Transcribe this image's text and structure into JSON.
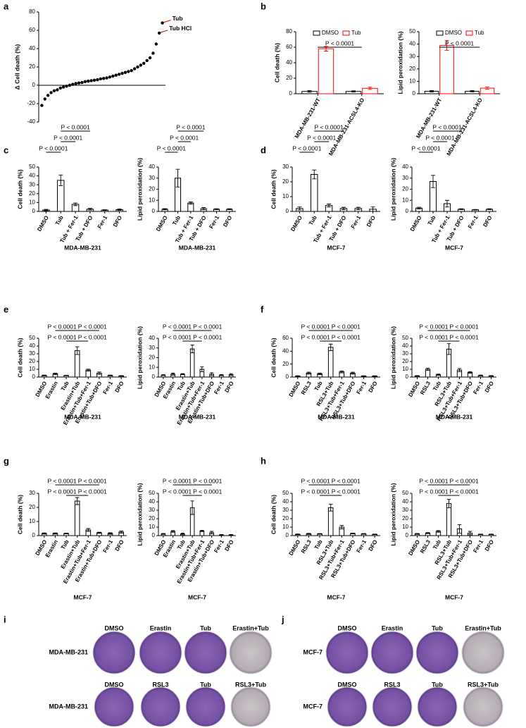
{
  "chart_data": [
    {
      "type": "scatter",
      "label": "a",
      "ylabel": "Δ Cell death (%)",
      "x": [
        1,
        2,
        3,
        4,
        5,
        6,
        7,
        8,
        9,
        10,
        11,
        12,
        13,
        14,
        15,
        16,
        17,
        18,
        19,
        20,
        21,
        22,
        23,
        24,
        25,
        26,
        27,
        28,
        29,
        30,
        31,
        32,
        33,
        34,
        35,
        36,
        37,
        38,
        39,
        40
      ],
      "values": [
        -22,
        -15,
        -11,
        -8,
        -6,
        -5,
        -3,
        -2,
        -1,
        0,
        1,
        2,
        2.5,
        3,
        4,
        4.5,
        5,
        5.5,
        6,
        7,
        7.5,
        8,
        9,
        10,
        11,
        12,
        13,
        14,
        15,
        16,
        18,
        20,
        22,
        24,
        27,
        30,
        35,
        45,
        57,
        68
      ],
      "xlim": [
        0,
        41
      ],
      "ylim": [
        -40,
        80
      ],
      "yticks": [
        -40,
        -20,
        0,
        20,
        40,
        60,
        80
      ],
      "color": "#000000",
      "annotations": [
        "Tub HCl",
        "Tub"
      ]
    },
    {
      "type": "bar",
      "label": "b",
      "ylabel": "Cell death (%)",
      "categories": [
        "MDA-MB-231-WT",
        "MDA-MB-231-ACSL4-KO"
      ],
      "series": [
        {
          "name": "DMSO",
          "color": "#000000",
          "values": [
            3,
            3
          ],
          "errors": [
            1,
            0.8
          ]
        },
        {
          "name": "Tub",
          "color": "#ff0000",
          "values": [
            58,
            7
          ],
          "errors": [
            3,
            1.5
          ]
        }
      ],
      "ylim": [
        0,
        80
      ],
      "yticks": [
        0,
        20,
        40,
        60,
        80
      ],
      "legend": "top-right",
      "annotations": [
        "P < 0.0001"
      ]
    },
    {
      "type": "bar",
      "ylabel": "Lipid peroxidation (%)",
      "categories": [
        "MDA-MB-231-WT",
        "MDA-MB-231-ACSL4-KO"
      ],
      "series": [
        {
          "name": "DMSO",
          "color": "#000000",
          "values": [
            2,
            2
          ],
          "errors": [
            0.6,
            0.5
          ]
        },
        {
          "name": "Tub",
          "color": "#ff0000",
          "values": [
            39,
            4.5
          ],
          "errors": [
            4,
            1
          ]
        }
      ],
      "ylim": [
        0,
        50
      ],
      "yticks": [
        0,
        10,
        20,
        30,
        40,
        50
      ],
      "legend": "top-right",
      "annotations": [
        "P < 0.0001"
      ]
    },
    {
      "type": "bar",
      "label": "c",
      "ylabel": "Cell death (%)",
      "xlabel": "MDA-MB-231",
      "categories": [
        "DMSO",
        "Tub",
        "Tub + Fer-1",
        "Tub + DFO",
        "Fer-1",
        "DFO"
      ],
      "values": [
        1.5,
        35,
        8,
        2.5,
        1.5,
        2
      ],
      "errors": [
        0.8,
        6,
        1.5,
        1,
        0.4,
        0.8
      ],
      "color": "#000000",
      "ylim": [
        0,
        50
      ],
      "yticks": [
        0,
        10,
        20,
        30,
        40,
        50
      ],
      "annotations": [
        "P < 0.0001",
        "P < 0.0001",
        "P < 0.0001"
      ]
    },
    {
      "type": "bar",
      "ylabel": "Lipid peroxidation (%)",
      "xlabel": "MDA-MB-231",
      "categories": [
        "DMSO",
        "Tub",
        "Tub + Fer-1",
        "Tub + DFO",
        "Fer-1",
        "DFO"
      ],
      "values": [
        2,
        30,
        7.5,
        2.5,
        2,
        2
      ],
      "errors": [
        0.5,
        8,
        1,
        1,
        0.4,
        0.4
      ],
      "color": "#000000",
      "ylim": [
        0,
        40
      ],
      "yticks": [
        0,
        10,
        20,
        30,
        40
      ],
      "annotations": [
        "P < 0.0001",
        "P < 0.0001",
        "P < 0.0001"
      ]
    },
    {
      "type": "bar",
      "label": "d",
      "ylabel": "Cell death (%)",
      "xlabel": "MCF-7",
      "categories": [
        "DMSO",
        "Tub",
        "Tub + Fer-1",
        "Tub + DFO",
        "Fer-1",
        "DFO"
      ],
      "values": [
        2,
        25,
        4,
        2,
        2,
        1.5
      ],
      "errors": [
        1,
        3,
        1,
        0.8,
        0.8,
        1.5
      ],
      "color": "#000000",
      "ylim": [
        0,
        30
      ],
      "yticks": [
        0,
        10,
        20,
        30
      ],
      "annotations": [
        "P < 0.0001",
        "P < 0.0001",
        "P < 0.0001"
      ]
    },
    {
      "type": "bar",
      "ylabel": "Lipid peroxidation (%)",
      "xlabel": "MCF-7",
      "categories": [
        "DMSO",
        "Tub",
        "Tub + Fer-1",
        "Tub + DFO",
        "Fer-1",
        "DFO"
      ],
      "values": [
        3,
        27,
        7,
        2,
        1.5,
        2
      ],
      "errors": [
        0.8,
        5.5,
        3,
        0.4,
        0.3,
        0.4
      ],
      "color": "#000000",
      "ylim": [
        0,
        40
      ],
      "yticks": [
        0,
        10,
        20,
        30,
        40
      ],
      "annotations": [
        "P < 0.0001",
        "P < 0.0001",
        "P < 0.0001"
      ]
    },
    {
      "type": "bar",
      "label": "e",
      "ylabel": "Cell death (%)",
      "xlabel": "MDA-MB-231",
      "categories": [
        "DMSO",
        "Erastin",
        "Tub",
        "Erastin+Tub",
        "Erastin+Tub+Fer-1",
        "Erastin+Tub+DFO",
        "Fer-1",
        "DFO"
      ],
      "values": [
        2,
        4,
        2,
        34,
        9,
        5,
        2,
        1.5
      ],
      "errors": [
        0.5,
        1,
        0.3,
        5,
        1.2,
        1.5,
        0.5,
        0.4
      ],
      "color": "#000000",
      "ylim": [
        0,
        50
      ],
      "yticks": [
        0,
        10,
        20,
        30,
        40,
        50
      ],
      "annotations": [
        "P < 0.0001",
        "P < 0.0001",
        "P < 0.0001",
        "P < 0.0001"
      ]
    },
    {
      "type": "bar",
      "ylabel": "Lipid peroxidation (%)",
      "xlabel": "MDA-MB-231",
      "categories": [
        "DMSO",
        "Erastin",
        "Tub",
        "Erastin+Tub",
        "Erastin+Tub+Fer-1",
        "Erastin+Tub+DFO",
        "Fer-1",
        "DFO"
      ],
      "values": [
        2,
        3,
        3,
        29,
        8,
        3,
        2,
        2.5
      ],
      "errors": [
        0.4,
        1,
        0.5,
        4,
        2.5,
        1.5,
        0.5,
        1
      ],
      "color": "#000000",
      "ylim": [
        0,
        40
      ],
      "yticks": [
        0,
        10,
        20,
        30,
        40
      ],
      "annotations": [
        "P < 0.0001",
        "P < 0.0001",
        "P < 0.0001",
        "P < 0.0001"
      ]
    },
    {
      "type": "bar",
      "label": "f",
      "ylabel": "Cell death (%)",
      "xlabel": "MDA-MB-231",
      "categories": [
        "DMSO",
        "RSL3",
        "Tub",
        "RSL3+Tub",
        "RSL3+Tub+Fer-1",
        "RSL3+Tub+DFO",
        "Fer-1",
        "DFO"
      ],
      "values": [
        1.5,
        6,
        5,
        46,
        8,
        6,
        1.5,
        1.5
      ],
      "errors": [
        0.4,
        1.5,
        1.2,
        5,
        1.5,
        1.5,
        0.4,
        0.4
      ],
      "color": "#000000",
      "ylim": [
        0,
        60
      ],
      "yticks": [
        0,
        20,
        40,
        60
      ],
      "annotations": [
        "P < 0.0001",
        "P < 0.0001",
        "P < 0.0001",
        "P < 0.0001"
      ]
    },
    {
      "type": "bar",
      "ylabel": "Lipid peroxidation (%)",
      "xlabel": "MDA-MB-231",
      "categories": [
        "DMSO",
        "RSL3",
        "Tub",
        "RSL3+Tub",
        "RSL3+Tub+Fer-1",
        "RSL3+Tub+DFO",
        "Fer-1",
        "DFO"
      ],
      "values": [
        1.5,
        10,
        3,
        36,
        9,
        6,
        2,
        1.5
      ],
      "errors": [
        0.4,
        1.5,
        0.8,
        7,
        2,
        1,
        0.5,
        0.4
      ],
      "color": "#000000",
      "ylim": [
        0,
        50
      ],
      "yticks": [
        0,
        10,
        20,
        30,
        40,
        50
      ],
      "annotations": [
        "P < 0.0001",
        "P < 0.0001",
        "P < 0.0001",
        "P < 0.0001"
      ]
    },
    {
      "type": "bar",
      "label": "g",
      "ylabel": "Cell death (%)",
      "xlabel": "MCF-7",
      "categories": [
        "DMSO",
        "Erastin",
        "Tub",
        "Erastin+Tub",
        "Erastin+Tub+Fer-1",
        "Erastin+Tub+DFO",
        "Fer-1",
        "DFO"
      ],
      "values": [
        1.5,
        1.5,
        1.5,
        24.5,
        4,
        2,
        1.5,
        2.5
      ],
      "errors": [
        0.4,
        0.4,
        0.3,
        2.5,
        1,
        0.4,
        0.5,
        0.8
      ],
      "color": "#000000",
      "ylim": [
        0,
        30
      ],
      "yticks": [
        0,
        10,
        20,
        30
      ],
      "annotations": [
        "P < 0.0001",
        "P < 0.0001",
        "P < 0.0001",
        "P < 0.0001"
      ]
    },
    {
      "type": "bar",
      "ylabel": "Lipid peroxidation (%)",
      "xlabel": "MCF-7",
      "categories": [
        "DMSO",
        "Erastin",
        "Tub",
        "Erastin+Tub",
        "Erastin+Tub+Fer-1",
        "Erastin+Tub+DFO",
        "Fer-1",
        "DFO"
      ],
      "values": [
        2,
        5,
        2,
        33,
        5.5,
        3.5,
        1,
        1
      ],
      "errors": [
        0.5,
        1,
        1,
        8,
        0.8,
        1.5,
        0.3,
        0.3
      ],
      "color": "#000000",
      "ylim": [
        0,
        50
      ],
      "yticks": [
        0,
        10,
        20,
        30,
        40,
        50
      ],
      "annotations": [
        "P < 0.0001",
        "P < 0.0001",
        "P < 0.0001",
        "P < 0.0001"
      ]
    },
    {
      "type": "bar",
      "label": "h",
      "ylabel": "Cell death (%)",
      "xlabel": "MCF-7",
      "categories": [
        "DMSO",
        "RSL3",
        "Tub",
        "RSL3+Tub",
        "RSL3+Tub+Fer-1",
        "RSL3+Tub+DFO",
        "Fer-1",
        "DFO"
      ],
      "values": [
        1.5,
        2,
        2,
        33,
        10,
        2.5,
        2,
        1.5
      ],
      "errors": [
        0.4,
        0.6,
        0.4,
        4,
        2,
        0.5,
        0.4,
        0.3
      ],
      "color": "#000000",
      "ylim": [
        0,
        50
      ],
      "yticks": [
        0,
        10,
        20,
        30,
        40,
        50
      ],
      "annotations": [
        "P < 0.0001",
        "P < 0.0001",
        "P < 0.0001",
        "P < 0.0001"
      ]
    },
    {
      "type": "bar",
      "ylabel": "Lipid peroxidation (%)",
      "xlabel": "MCF-7",
      "categories": [
        "DMSO",
        "RSL3",
        "Tub",
        "RSL3+Tub",
        "RSL3+Tub+Fer-1",
        "RSL3+Tub+DFO",
        "Fer-1",
        "DFO"
      ],
      "values": [
        2,
        3,
        5,
        38,
        8,
        3,
        1.5,
        1.5
      ],
      "errors": [
        0.5,
        0.6,
        1,
        5,
        5,
        2,
        0.3,
        0.3
      ],
      "color": "#000000",
      "ylim": [
        0,
        50
      ],
      "yticks": [
        0,
        10,
        20,
        30,
        40,
        50
      ],
      "annotations": [
        "P < 0.0001",
        "P < 0.0001",
        "P < 0.0001",
        "P < 0.0001"
      ]
    }
  ],
  "plates": [
    {
      "label": "i",
      "rows": [
        {
          "cell_line": "MDA-MB-231",
          "conditions": [
            "DMSO",
            "Erastin",
            "Tub",
            "Erastin+Tub"
          ]
        },
        {
          "cell_line": "MDA-MB-231",
          "conditions": [
            "DMSO",
            "RSL3",
            "Tub",
            "RSL3+Tub"
          ]
        }
      ]
    },
    {
      "label": "j",
      "rows": [
        {
          "cell_line": "MCF-7",
          "conditions": [
            "DMSO",
            "Erastin",
            "Tub",
            "Erastin+Tub"
          ]
        },
        {
          "cell_line": "MCF-7",
          "conditions": [
            "DMSO",
            "RSL3",
            "Tub",
            "RSL3+Tub"
          ]
        }
      ]
    }
  ]
}
